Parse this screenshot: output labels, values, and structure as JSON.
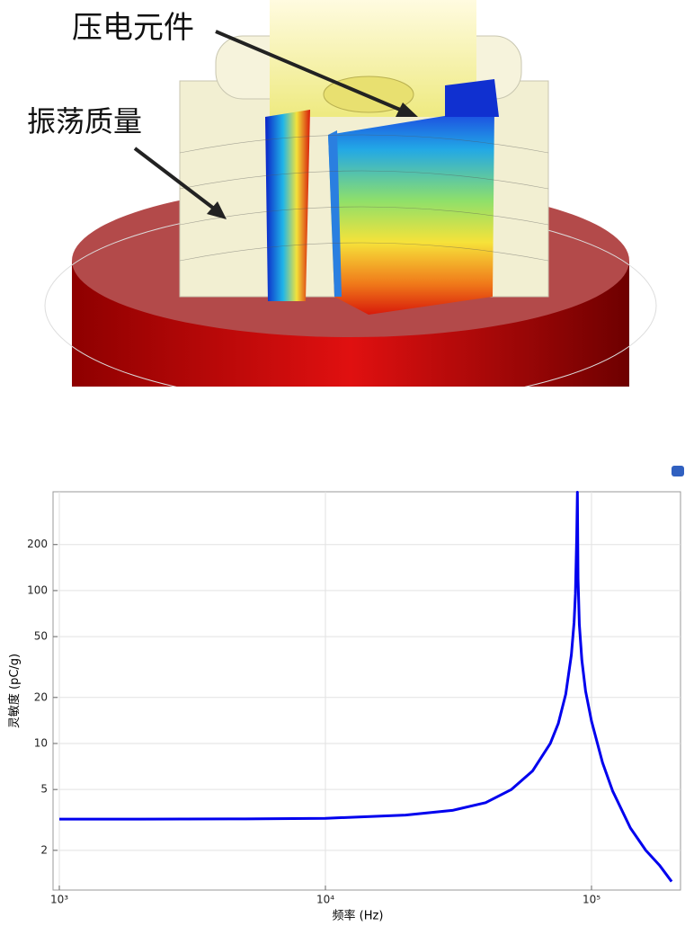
{
  "image_labels": [
    "压电元件",
    "振荡质量"
  ],
  "chart_data": {
    "type": "line",
    "x_label": "频率 (Hz)",
    "y_label": "灵敏度 (pC/g)",
    "x": [
      1000,
      2000,
      5000,
      10000,
      20000,
      30000,
      40000,
      50000,
      60000,
      70000,
      75000,
      80000,
      84000,
      86000,
      87000,
      88000,
      88500,
      89000,
      90000,
      92000,
      95000,
      100000,
      110000,
      120000,
      140000,
      160000,
      180000,
      200000
    ],
    "values": [
      3.2,
      3.2,
      3.21,
      3.24,
      3.4,
      3.65,
      4.1,
      5.0,
      6.6,
      10,
      13.5,
      21,
      38,
      62,
      95,
      230,
      440,
      120,
      60,
      35,
      22,
      14,
      7.5,
      4.9,
      2.8,
      2.0,
      1.6,
      1.25
    ],
    "color": "#0000ee",
    "xlim": [
      947,
      216000
    ],
    "ylim": [
      1.1,
      443
    ],
    "xscale": "log",
    "yscale": "log",
    "xticks": [
      {
        "value": 1000,
        "label": "10³"
      },
      {
        "value": 10000,
        "label": "10⁴"
      },
      {
        "value": 100000,
        "label": "10⁵"
      }
    ],
    "yticks": [
      2,
      5,
      10,
      20,
      50,
      100,
      200
    ],
    "grid": true
  }
}
